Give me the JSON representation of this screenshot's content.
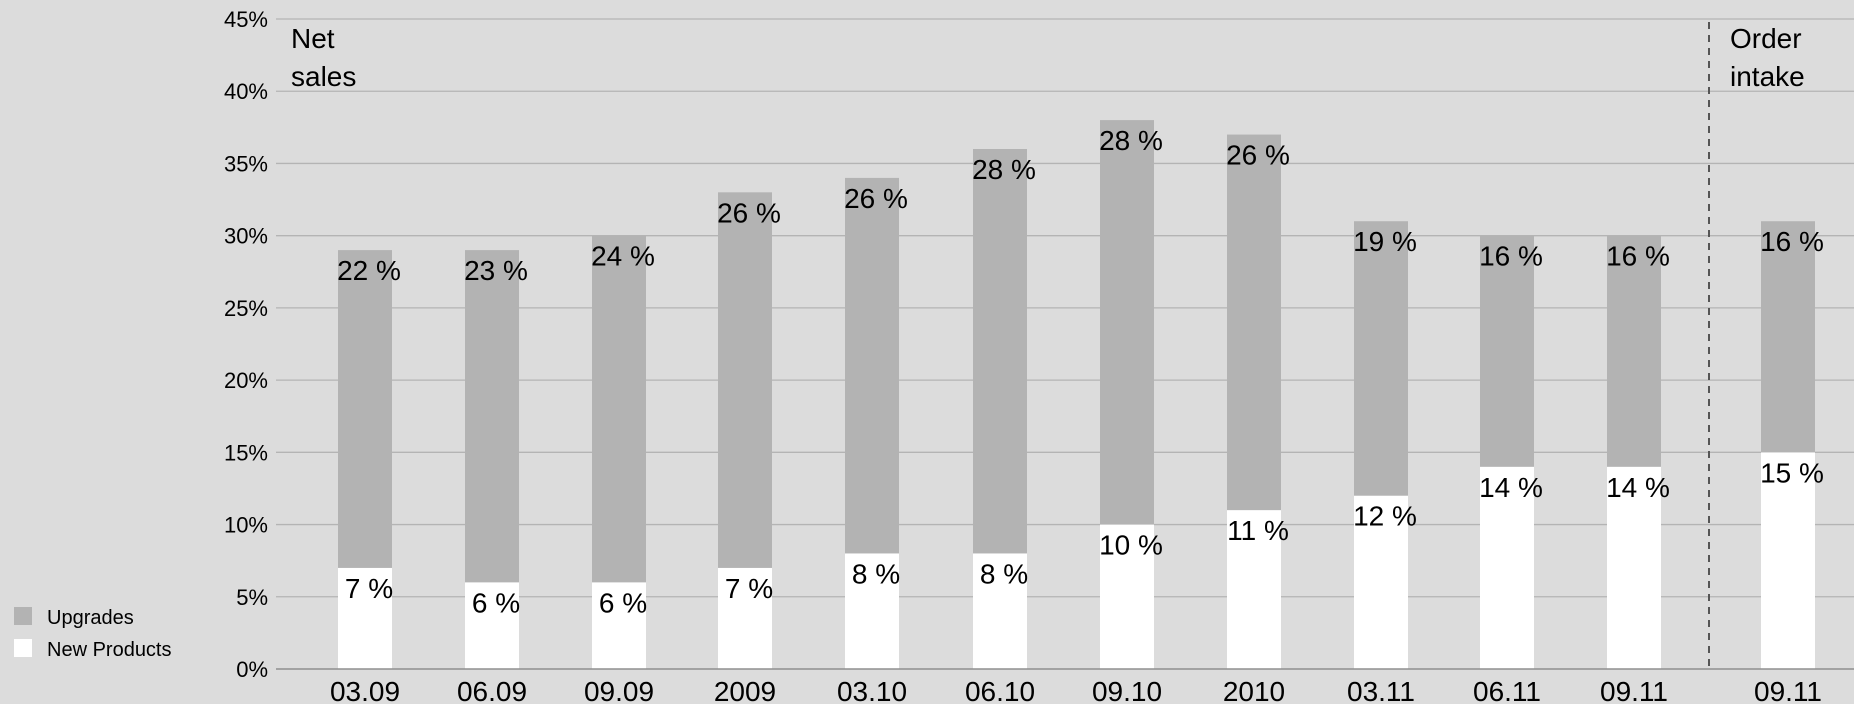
{
  "chart_data": {
    "type": "bar",
    "stacked": true,
    "categories": [
      "03.09",
      "06.09",
      "09.09",
      "2009",
      "03.10",
      "06.10",
      "09.10",
      "2010",
      "03.11",
      "06.11",
      "09.11",
      "09.11"
    ],
    "series": [
      {
        "name": "New Products",
        "color": "#ffffff",
        "values": [
          7,
          6,
          6,
          7,
          8,
          8,
          10,
          11,
          12,
          14,
          14,
          15
        ],
        "labels": [
          "7 %",
          "6 %",
          "6 %",
          "7 %",
          "8 %",
          "8 %",
          "10 %",
          "11 %",
          "12 %",
          "14 %",
          "14 %",
          "15 %"
        ]
      },
      {
        "name": "Upgrades",
        "color": "#b3b3b3",
        "values": [
          22,
          23,
          24,
          26,
          26,
          28,
          28,
          26,
          19,
          16,
          16,
          16
        ],
        "labels": [
          "22 %",
          "23 %",
          "24 %",
          "26 %",
          "26 %",
          "28 %",
          "28 %",
          "26 %",
          "19 %",
          "16 %",
          "16 %",
          "16 %"
        ]
      }
    ],
    "ylim": [
      0,
      45
    ],
    "yticks": [
      "0%",
      "5%",
      "10%",
      "15%",
      "20%",
      "25%",
      "30%",
      "35%",
      "40%",
      "45%"
    ],
    "grid": true,
    "legend_position": "bottom-left",
    "annotations": {
      "left_section": [
        "Net",
        "sales"
      ],
      "right_section": [
        "Order",
        "intake"
      ]
    },
    "divider_after_category_index": 10
  }
}
